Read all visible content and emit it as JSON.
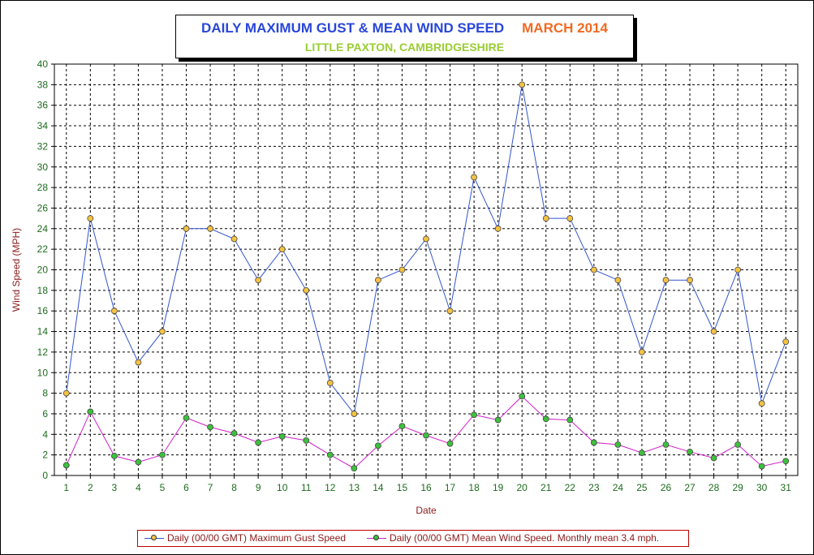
{
  "title": {
    "main": "DAILY MAXIMUM GUST & MEAN WIND SPEED",
    "period": "MARCH 2014",
    "subtitle": "LITTLE PAXTON, CAMBRIDGESHIRE"
  },
  "colors": {
    "title_main": "#2a46d8",
    "title_period": "#f26a21",
    "subtitle": "#9acd32",
    "gust_line": "#3355cc",
    "gust_marker": "#f5c242",
    "mean_line": "#d020c8",
    "mean_marker": "#3cc23c",
    "axis_text": "#1e6b1e",
    "axis_label": "#8b1a1a"
  },
  "chart_data": {
    "type": "line",
    "xlabel": "Date",
    "ylabel": "Wind Speed (MPH)",
    "x": [
      1,
      2,
      3,
      4,
      5,
      6,
      7,
      8,
      9,
      10,
      11,
      12,
      13,
      14,
      15,
      16,
      17,
      18,
      19,
      20,
      21,
      22,
      23,
      24,
      25,
      26,
      27,
      28,
      29,
      30,
      31
    ],
    "ylim": [
      0,
      40
    ],
    "ytick_step": 2,
    "grid": true,
    "legend_position": "bottom",
    "series": [
      {
        "name": "Daily (00/00 GMT) Maximum Gust Speed",
        "values": [
          8,
          25,
          16,
          11,
          14,
          24,
          24,
          23,
          19,
          22,
          18,
          9,
          6,
          19,
          20,
          23,
          16,
          29,
          24,
          38,
          25,
          25,
          20,
          19,
          12,
          19,
          19,
          14,
          20,
          7,
          13
        ]
      },
      {
        "name": "Daily (00/00 GMT) Mean Wind Speed. Monthly mean 3.4 mph.",
        "values": [
          1.0,
          6.2,
          1.9,
          1.3,
          2.0,
          5.6,
          4.7,
          4.1,
          3.2,
          3.8,
          3.4,
          2.0,
          0.7,
          2.9,
          4.8,
          3.9,
          3.1,
          5.9,
          5.4,
          7.7,
          5.5,
          5.4,
          3.2,
          3.0,
          2.2,
          3.0,
          2.3,
          1.7,
          3.0,
          0.9,
          1.4
        ]
      }
    ]
  }
}
